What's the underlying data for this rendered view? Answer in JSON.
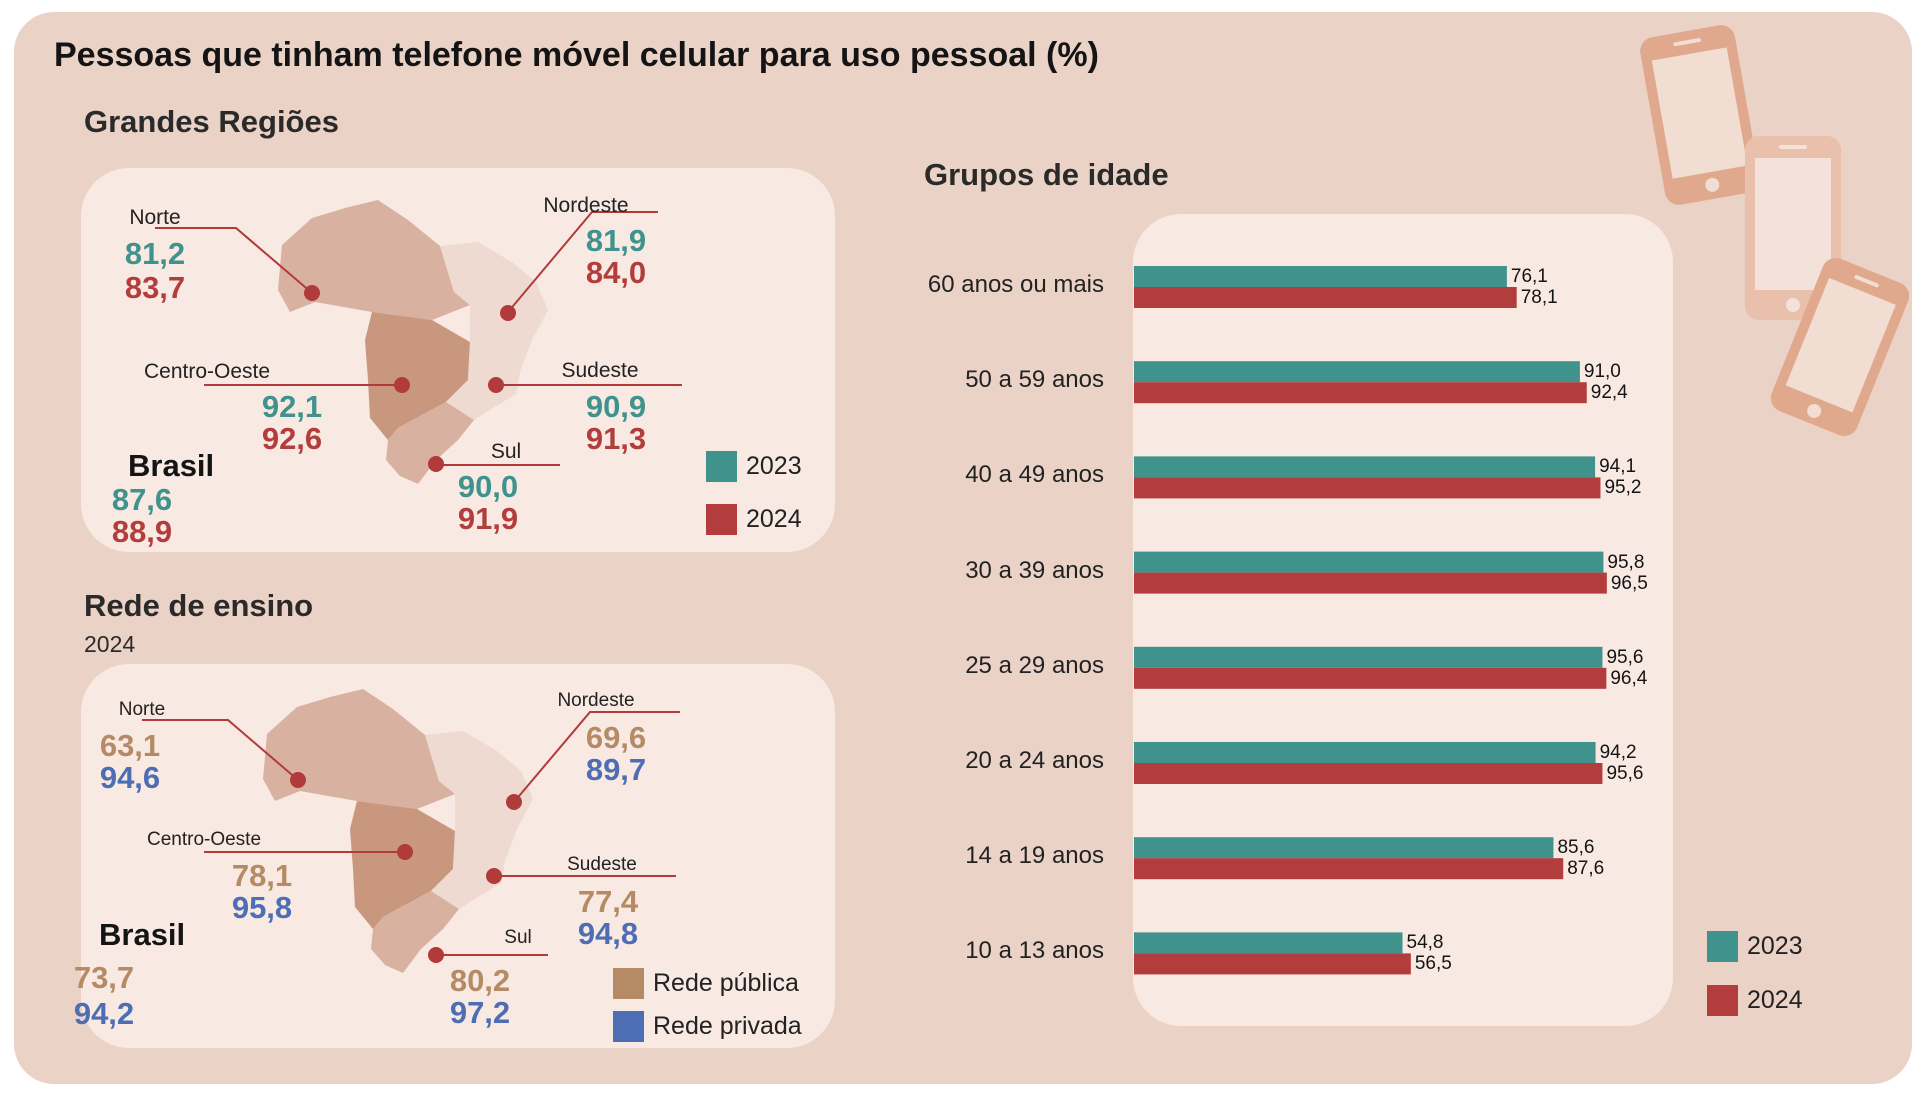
{
  "title": "Pessoas que tinham telefone móvel celular para uso pessoal (%)",
  "colors": {
    "c2023": "#40928d",
    "c2024": "#b33d3c",
    "publica": "#b48b64",
    "privada": "#4d6eb4",
    "panel": "#f8e9e2",
    "background": "#ead2c6"
  },
  "icons": [
    "phone-icon",
    "phone-icon",
    "phone-icon"
  ],
  "regioes": {
    "heading": "Grandes Regiões",
    "legend": {
      "y2023": "2023",
      "y2024": "2024"
    },
    "items": [
      {
        "name": "Norte",
        "v2023": "81,2",
        "v2024": "83,7"
      },
      {
        "name": "Nordeste",
        "v2023": "81,9",
        "v2024": "84,0"
      },
      {
        "name": "Centro-Oeste",
        "v2023": "92,1",
        "v2024": "92,6"
      },
      {
        "name": "Sudeste",
        "v2023": "90,9",
        "v2024": "91,3"
      },
      {
        "name": "Sul",
        "v2023": "90,0",
        "v2024": "91,9"
      }
    ],
    "brasil": {
      "label": "Brasil",
      "v2023": "87,6",
      "v2024": "88,9"
    }
  },
  "rede": {
    "heading": "Rede de ensino",
    "year": "2024",
    "legend": {
      "publica": "Rede pública",
      "privada": "Rede privada"
    },
    "items": [
      {
        "name": "Norte",
        "publica": "63,1",
        "privada": "94,6"
      },
      {
        "name": "Nordeste",
        "publica": "69,6",
        "privada": "89,7"
      },
      {
        "name": "Centro-Oeste",
        "publica": "78,1",
        "privada": "95,8"
      },
      {
        "name": "Sudeste",
        "publica": "77,4",
        "privada": "94,8"
      },
      {
        "name": "Sul",
        "publica": "80,2",
        "privada": "97,2"
      }
    ],
    "brasil": {
      "label": "Brasil",
      "publica": "73,7",
      "privada": "94,2"
    }
  },
  "chart_data": {
    "type": "bar",
    "orientation": "horizontal",
    "title": "Grupos de idade",
    "categories": [
      "60 anos ou mais",
      "50 a 59 anos",
      "40 a 49 anos",
      "30 a 39 anos",
      "25 a 29 anos",
      "20 a 24 anos",
      "14 a 19 anos",
      "10 a 13 anos"
    ],
    "series": [
      {
        "name": "2023",
        "values": [
          76.1,
          91.0,
          94.1,
          95.8,
          95.6,
          94.2,
          85.6,
          54.8
        ],
        "labels": [
          "76,1",
          "91,0",
          "94,1",
          "95,8",
          "95,6",
          "94,2",
          "85,6",
          "54,8"
        ]
      },
      {
        "name": "2024",
        "values": [
          78.1,
          92.4,
          95.2,
          96.5,
          96.4,
          95.6,
          87.6,
          56.5
        ],
        "labels": [
          "78,1",
          "92,4",
          "95,2",
          "96,5",
          "96,4",
          "95,6",
          "87,6",
          "56,5"
        ]
      }
    ],
    "xlim": [
      0,
      100
    ],
    "legend": "bottom-right"
  }
}
